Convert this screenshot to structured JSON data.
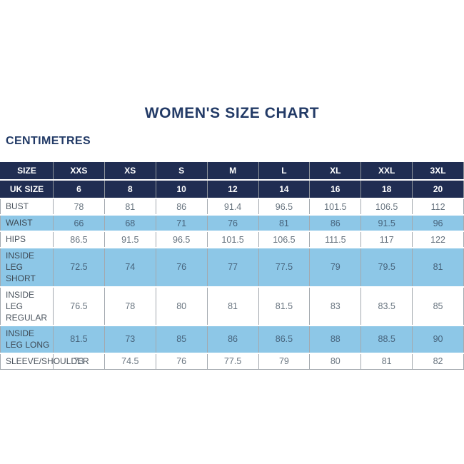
{
  "title": "WOMEN'S SIZE CHART",
  "unit_label": "CENTIMETRES",
  "colors": {
    "navy": "#202d52",
    "light_blue": "#8dc7e7",
    "title_navy": "#223a66",
    "grid_line": "#a3a9af",
    "data_text": "#68747f"
  },
  "chart_data": {
    "type": "table",
    "title": "WOMEN'S SIZE CHART",
    "unit": "CENTIMETRES",
    "columns": [
      "SIZE",
      "XXS",
      "XS",
      "S",
      "M",
      "L",
      "XL",
      "XXL",
      "3XL"
    ],
    "uk_size_row": {
      "label": "UK SIZE",
      "values": [
        "6",
        "8",
        "10",
        "12",
        "14",
        "16",
        "18",
        "20"
      ]
    },
    "rows": [
      {
        "label": "BUST",
        "shade": "white",
        "values": [
          "78",
          "81",
          "86",
          "91.4",
          "96.5",
          "101.5",
          "106.5",
          "112"
        ]
      },
      {
        "label": "WAIST",
        "shade": "blue",
        "values": [
          "66",
          "68",
          "71",
          "76",
          "81",
          "86",
          "91.5",
          "96"
        ]
      },
      {
        "label": "HIPS",
        "shade": "white",
        "values": [
          "86.5",
          "91.5",
          "96.5",
          "101.5",
          "106.5",
          "111.5",
          "117",
          "122"
        ]
      },
      {
        "label": "INSIDE LEG SHORT",
        "shade": "blue",
        "values": [
          "72.5",
          "74",
          "76",
          "77",
          "77.5",
          "79",
          "79.5",
          "81"
        ]
      },
      {
        "label": "INSIDE LEG REGULAR",
        "shade": "white",
        "values": [
          "76.5",
          "78",
          "80",
          "81",
          "81.5",
          "83",
          "83.5",
          "85"
        ]
      },
      {
        "label": "INSIDE LEG LONG",
        "shade": "blue",
        "values": [
          "81.5",
          "73",
          "85",
          "86",
          "86.5",
          "88",
          "88.5",
          "90"
        ]
      },
      {
        "label": "SLEEVE/SHOULDER",
        "shade": "white",
        "values": [
          "73",
          "74.5",
          "76",
          "77.5",
          "79",
          "80",
          "81",
          "82"
        ]
      }
    ]
  }
}
